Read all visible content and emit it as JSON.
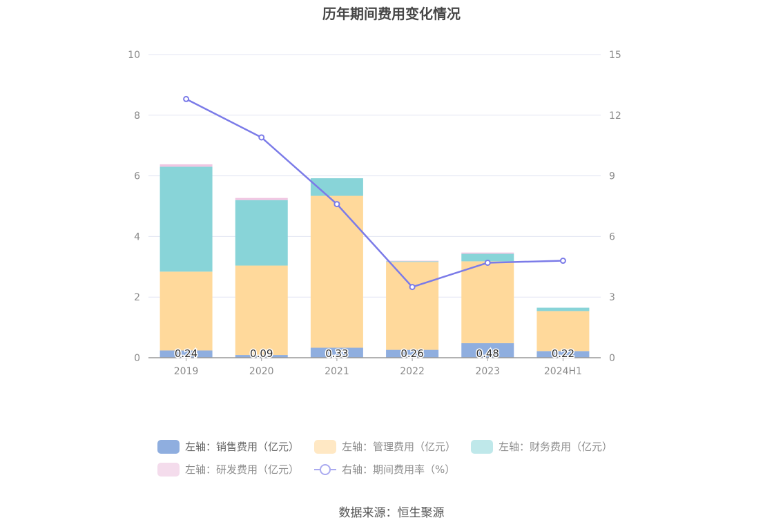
{
  "chart_data": {
    "type": "bar",
    "title": "历年期间费用变化情况",
    "categories": [
      "2019",
      "2020",
      "2021",
      "2022",
      "2023",
      "2024H1"
    ],
    "stacked": true,
    "series": [
      {
        "name": "左轴：销售费用（亿元）",
        "axis": "left",
        "type": "bar",
        "color": "#8faedf",
        "values": [
          0.24,
          0.09,
          0.33,
          0.26,
          0.48,
          0.22
        ],
        "labels": [
          "0.24",
          "0.09",
          "0.33",
          "0.26",
          "0.48",
          "0.22"
        ]
      },
      {
        "name": "左轴：管理费用（亿元）",
        "axis": "left",
        "type": "bar",
        "color": "#ffd99b",
        "values": [
          2.6,
          2.95,
          5.01,
          2.9,
          2.7,
          1.32
        ]
      },
      {
        "name": "左轴：财务费用（亿元）",
        "axis": "left",
        "type": "bar",
        "color": "#88d4d8",
        "values": [
          3.46,
          2.16,
          0.58,
          0.02,
          0.25,
          0.11
        ]
      },
      {
        "name": "左轴：研发费用（亿元）",
        "axis": "left",
        "type": "bar",
        "color": "#f0c6e2",
        "values": [
          0.08,
          0.07,
          0.0,
          0.02,
          0.04,
          0.0
        ]
      },
      {
        "name": "右轴：期间费用率（%）",
        "axis": "right",
        "type": "line",
        "color": "#7b7be8",
        "values": [
          12.8,
          10.9,
          7.6,
          3.5,
          4.7,
          4.8
        ]
      }
    ],
    "y_left": {
      "min": 0,
      "max": 10,
      "ticks": [
        0,
        2,
        4,
        6,
        8,
        10
      ]
    },
    "y_right": {
      "min": 0,
      "max": 15,
      "ticks": [
        0,
        3,
        6,
        9,
        12,
        15
      ]
    },
    "grid": true,
    "legend_position": "bottom"
  },
  "legend": {
    "rows": [
      [
        {
          "label": "左轴：销售费用（亿元）",
          "color": "#8faedf",
          "kind": "bar"
        },
        {
          "label": "左轴：管理费用（亿元）",
          "color": "#ffe8c4",
          "kind": "bar"
        },
        {
          "label": "左轴：财务费用（亿元）",
          "color": "#bfe8ea",
          "kind": "bar"
        }
      ],
      [
        {
          "label": "左轴：研发费用（亿元）",
          "color": "#f4dcec",
          "kind": "bar"
        },
        {
          "label": "右轴：期间费用率（%）",
          "color": "#aaaaf0",
          "kind": "line"
        }
      ]
    ]
  },
  "source": "数据来源：恒生聚源"
}
